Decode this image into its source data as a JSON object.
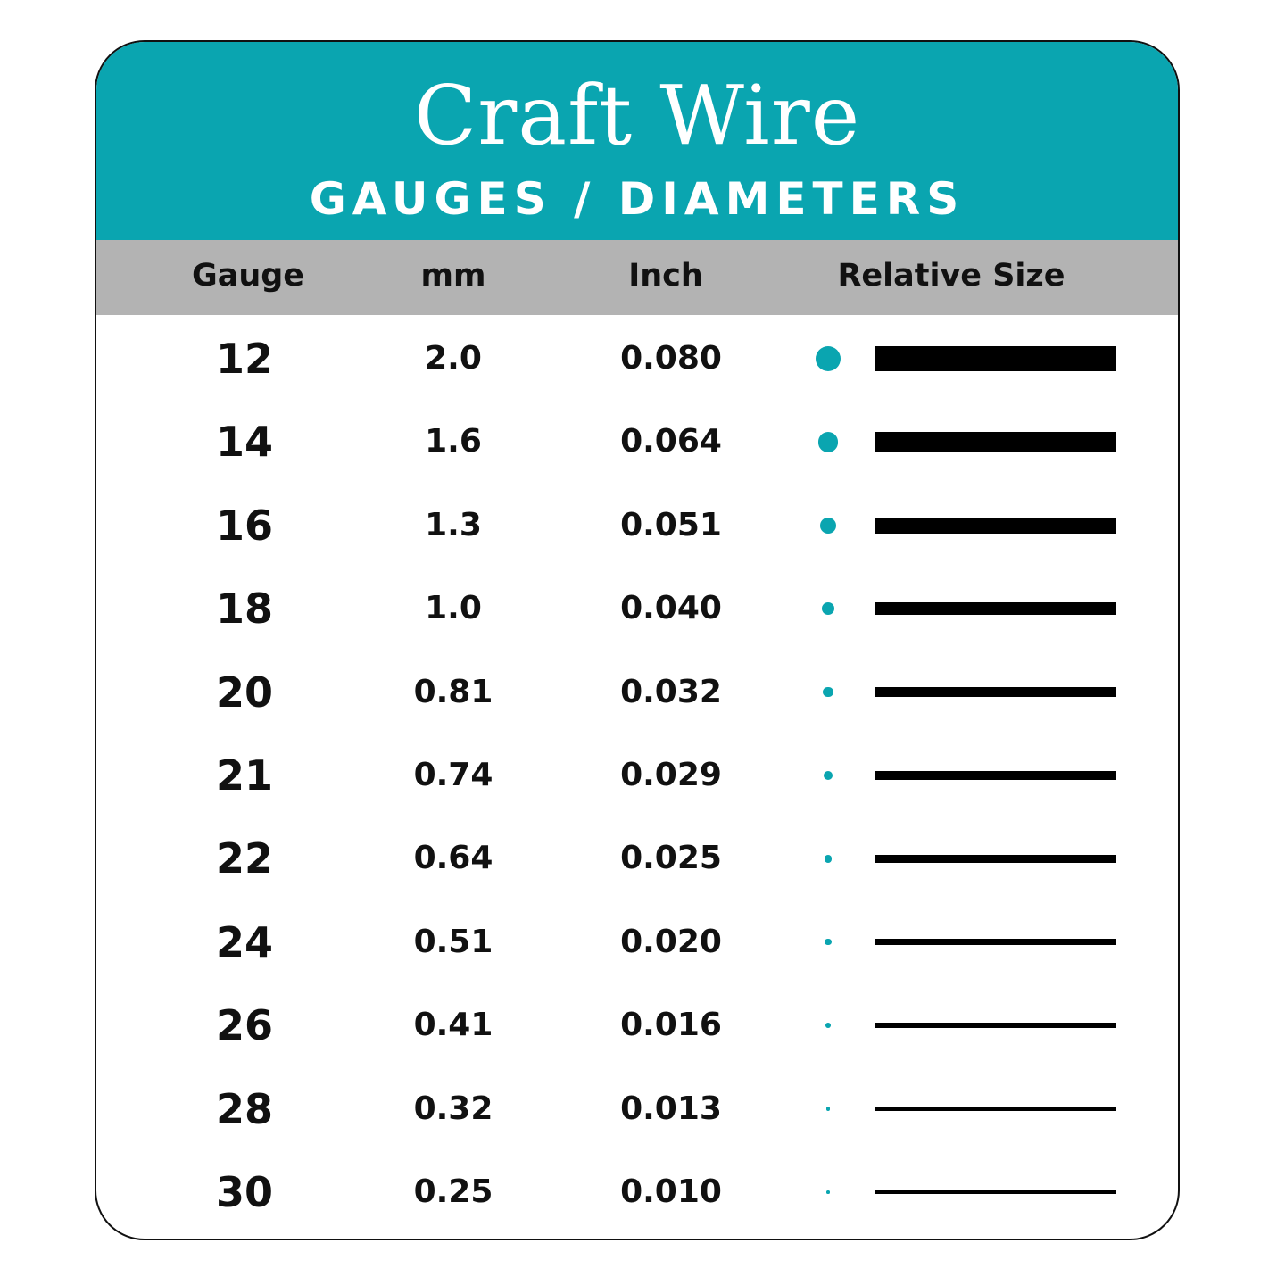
{
  "header": {
    "title": "Craft Wire",
    "subtitle": "GAUGES / DIAMETERS"
  },
  "colors": {
    "accent": "#0aa5b0",
    "header_band": "#b3b3b3",
    "bar": "#000000"
  },
  "chart_data": {
    "type": "table",
    "title": "Craft Wire",
    "subtitle": "GAUGES / DIAMETERS",
    "columns": [
      "Gauge",
      "mm",
      "Inch",
      "Relative Size"
    ],
    "rows": [
      {
        "gauge": "12",
        "mm": "2.0",
        "inch": "0.080"
      },
      {
        "gauge": "14",
        "mm": "1.6",
        "inch": "0.064"
      },
      {
        "gauge": "16",
        "mm": "1.3",
        "inch": "0.051"
      },
      {
        "gauge": "18",
        "mm": "1.0",
        "inch": "0.040"
      },
      {
        "gauge": "20",
        "mm": "0.81",
        "inch": "0.032"
      },
      {
        "gauge": "21",
        "mm": "0.74",
        "inch": "0.029"
      },
      {
        "gauge": "22",
        "mm": "0.64",
        "inch": "0.025"
      },
      {
        "gauge": "24",
        "mm": "0.51",
        "inch": "0.020"
      },
      {
        "gauge": "26",
        "mm": "0.41",
        "inch": "0.016"
      },
      {
        "gauge": "28",
        "mm": "0.32",
        "inch": "0.013"
      },
      {
        "gauge": "30",
        "mm": "0.25",
        "inch": "0.010"
      }
    ]
  }
}
